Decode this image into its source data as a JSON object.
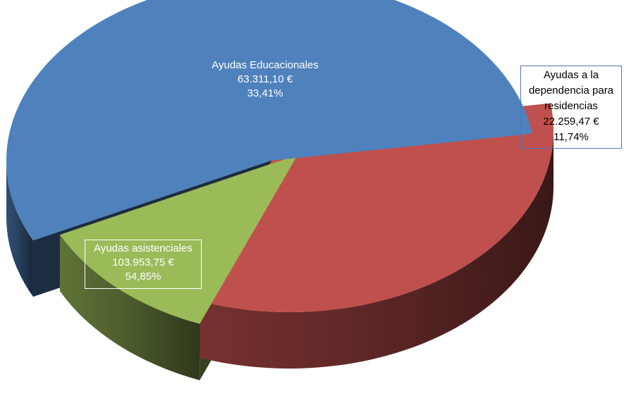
{
  "chart_data": {
    "type": "pie",
    "title": "",
    "slices": [
      {
        "name": "Ayudas asistenciales",
        "value": 103953.75,
        "amount_label": "103.953,75 €",
        "percent_label": "54,85%",
        "color": "#4f81bd"
      },
      {
        "name": "Ayudas Educacionales",
        "value": 63311.1,
        "amount_label": "63.311,10 €",
        "percent_label": "33,41%",
        "color": "#c0504d"
      },
      {
        "name": "Ayudas a la dependencia para residencias",
        "name_lines": [
          "Ayudas a la",
          "dependencia para",
          "residencias"
        ],
        "value": 22259.47,
        "amount_label": "22.259,47 €",
        "percent_label": "11,74%",
        "color": "#9bbb59"
      }
    ]
  }
}
